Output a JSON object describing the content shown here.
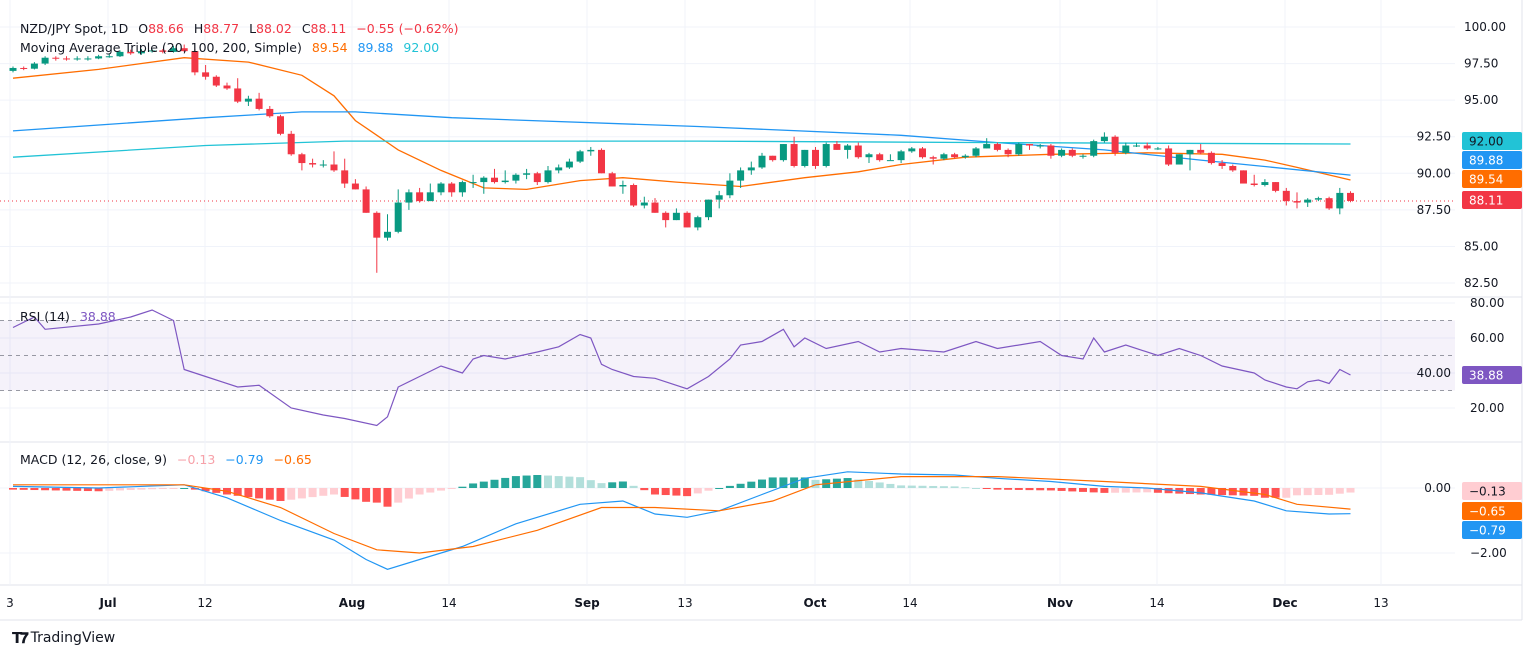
{
  "header": {
    "symbol": "NZD/JPY Spot, 1D",
    "open_label": "O",
    "open": "88.66",
    "high_label": "H",
    "high": "88.77",
    "low_label": "L",
    "low": "88.02",
    "close_label": "C",
    "close": "88.11",
    "change": "−0.55 (−0.62%)"
  },
  "ma_legend": {
    "title": "Moving Average Triple (20, 100, 200, Simple)",
    "ma20": "89.54",
    "ma100": "89.88",
    "ma200": "92.00"
  },
  "rsi_legend": {
    "title": "RSI (14)",
    "value": "38.88"
  },
  "macd_legend": {
    "title": "MACD (12, 26, close, 9)",
    "hist": "−0.13",
    "macd": "−0.79",
    "signal": "−0.65"
  },
  "colors": {
    "up": "#089981",
    "down": "#F23645",
    "ma20": "#FF6D00",
    "ma100": "#2196F3",
    "ma200": "#22C3D6",
    "rsi": "#7E57C2",
    "hist_up_strong": "#26A69A",
    "hist_up_weak": "#B2DFDB",
    "hist_dn_strong": "#FF5252",
    "hist_dn_weak": "#FFCDD2"
  },
  "price_axis": {
    "ticks": [
      "100.00",
      "97.50",
      "95.00",
      "92.50",
      "90.00",
      "87.50",
      "85.00",
      "82.50"
    ]
  },
  "rsi_axis": {
    "ticks": [
      "80.00",
      "60.00",
      "40.00",
      "20.00"
    ]
  },
  "macd_axis": {
    "ticks": [
      "0.00",
      "−2.00"
    ]
  },
  "time_axis": {
    "ticks": [
      "3",
      "Jul",
      "12",
      "Aug",
      "14",
      "Sep",
      "13",
      "Oct",
      "14",
      "Nov",
      "14",
      "Dec",
      "13"
    ]
  },
  "badges": {
    "ma200": "92.00",
    "ma100": "89.88",
    "ma20": "89.54",
    "last": "88.11",
    "rsi": "38.88",
    "hist": "−0.13",
    "signal": "−0.65",
    "macd": "−0.79"
  },
  "branding": {
    "logo_text": "TradingView"
  },
  "chart_data": {
    "type": "candlestick",
    "title": "NZD/JPY Spot, 1D",
    "ylim": [
      82.0,
      100.5
    ],
    "last_price": 88.11,
    "ohlc": [
      [
        97.0,
        97.3,
        96.9,
        97.2
      ],
      [
        97.2,
        97.3,
        97.05,
        97.15
      ],
      [
        97.15,
        97.6,
        97.1,
        97.5
      ],
      [
        97.5,
        98.0,
        97.4,
        97.9
      ],
      [
        97.9,
        98.0,
        97.7,
        97.85
      ],
      [
        97.85,
        98.0,
        97.7,
        97.8
      ],
      [
        97.8,
        98.0,
        97.7,
        97.85
      ],
      [
        97.85,
        98.0,
        97.7,
        97.85
      ],
      [
        97.85,
        98.1,
        97.8,
        98.0
      ],
      [
        98.0,
        98.15,
        97.9,
        98.0
      ],
      [
        98.0,
        98.4,
        97.95,
        98.3
      ],
      [
        98.3,
        98.45,
        98.1,
        98.2
      ],
      [
        98.2,
        98.5,
        98.1,
        98.35
      ],
      [
        98.35,
        98.5,
        98.25,
        98.4
      ],
      [
        98.4,
        98.5,
        98.2,
        98.3
      ],
      [
        98.3,
        98.7,
        98.25,
        98.55
      ],
      [
        98.55,
        98.8,
        98.3,
        98.35
      ],
      [
        98.35,
        98.5,
        96.7,
        96.9
      ],
      [
        96.9,
        97.4,
        96.4,
        96.6
      ],
      [
        96.6,
        96.7,
        95.9,
        96.0
      ],
      [
        96.0,
        96.2,
        95.7,
        95.8
      ],
      [
        95.8,
        96.5,
        94.8,
        94.9
      ],
      [
        94.9,
        95.3,
        94.6,
        95.1
      ],
      [
        95.1,
        95.5,
        94.3,
        94.4
      ],
      [
        94.4,
        94.6,
        93.8,
        93.9
      ],
      [
        93.9,
        94.0,
        92.6,
        92.7
      ],
      [
        92.7,
        92.9,
        91.2,
        91.3
      ],
      [
        91.3,
        91.4,
        90.2,
        90.7
      ],
      [
        90.7,
        91.0,
        90.4,
        90.6
      ],
      [
        90.6,
        90.9,
        90.4,
        90.6
      ],
      [
        90.6,
        91.5,
        90.1,
        90.2
      ],
      [
        90.2,
        91.0,
        89.0,
        89.3
      ],
      [
        89.3,
        89.6,
        88.9,
        88.9
      ],
      [
        88.9,
        89.1,
        87.3,
        87.3
      ],
      [
        87.3,
        87.4,
        83.2,
        85.6
      ],
      [
        85.6,
        87.2,
        85.4,
        86.0
      ],
      [
        86.0,
        88.9,
        85.9,
        88.0
      ],
      [
        88.0,
        88.9,
        87.5,
        88.7
      ],
      [
        88.7,
        89.0,
        88.0,
        88.1
      ],
      [
        88.1,
        89.3,
        88.1,
        88.7
      ],
      [
        88.7,
        89.4,
        88.5,
        89.3
      ],
      [
        89.3,
        89.4,
        88.4,
        88.7
      ],
      [
        88.7,
        89.5,
        88.4,
        89.4
      ],
      [
        89.4,
        89.9,
        89.0,
        89.4
      ],
      [
        89.4,
        89.8,
        88.6,
        89.7
      ],
      [
        89.7,
        90.3,
        89.3,
        89.4
      ],
      [
        89.4,
        90.2,
        89.3,
        89.5
      ],
      [
        89.5,
        90.0,
        89.3,
        89.9
      ],
      [
        89.9,
        90.3,
        89.6,
        90.0
      ],
      [
        90.0,
        90.1,
        89.2,
        89.4
      ],
      [
        89.4,
        90.5,
        89.3,
        90.2
      ],
      [
        90.2,
        90.6,
        90.0,
        90.4
      ],
      [
        90.4,
        91.0,
        90.3,
        90.8
      ],
      [
        90.8,
        91.6,
        90.7,
        91.5
      ],
      [
        91.5,
        91.8,
        91.2,
        91.6
      ],
      [
        91.6,
        91.7,
        90.0,
        90.0
      ],
      [
        90.0,
        90.1,
        89.1,
        89.1
      ],
      [
        89.1,
        89.5,
        88.6,
        89.2
      ],
      [
        89.2,
        89.3,
        87.7,
        87.8
      ],
      [
        87.8,
        88.4,
        87.6,
        88.0
      ],
      [
        88.0,
        88.3,
        87.3,
        87.3
      ],
      [
        87.3,
        87.4,
        86.3,
        86.8
      ],
      [
        86.8,
        87.6,
        86.8,
        87.3
      ],
      [
        87.3,
        87.4,
        86.3,
        86.3
      ],
      [
        86.3,
        87.1,
        86.1,
        87.0
      ],
      [
        87.0,
        88.2,
        86.8,
        88.2
      ],
      [
        88.2,
        88.8,
        87.6,
        88.5
      ],
      [
        88.5,
        90.0,
        88.3,
        89.5
      ],
      [
        89.5,
        90.4,
        89.0,
        90.2
      ],
      [
        90.2,
        90.8,
        89.9,
        90.4
      ],
      [
        90.4,
        91.4,
        90.3,
        91.2
      ],
      [
        91.2,
        91.2,
        90.8,
        90.9
      ],
      [
        90.9,
        92.0,
        90.8,
        92.0
      ],
      [
        92.0,
        92.5,
        90.4,
        90.5
      ],
      [
        90.5,
        91.6,
        90.4,
        91.6
      ],
      [
        91.6,
        91.8,
        90.3,
        90.5
      ],
      [
        90.5,
        92.1,
        90.4,
        92.0
      ],
      [
        92.0,
        92.2,
        91.6,
        91.6
      ],
      [
        91.6,
        92.0,
        91.0,
        91.9
      ],
      [
        91.9,
        92.1,
        91.0,
        91.1
      ],
      [
        91.1,
        91.4,
        90.7,
        91.3
      ],
      [
        91.3,
        91.4,
        90.8,
        90.9
      ],
      [
        90.9,
        91.3,
        90.9,
        90.9
      ],
      [
        90.9,
        91.6,
        90.7,
        91.5
      ],
      [
        91.5,
        91.8,
        91.4,
        91.7
      ],
      [
        91.7,
        91.8,
        91.0,
        91.1
      ],
      [
        91.1,
        91.2,
        90.6,
        91.0
      ],
      [
        91.0,
        91.4,
        90.9,
        91.3
      ],
      [
        91.3,
        91.4,
        91.0,
        91.1
      ],
      [
        91.1,
        91.3,
        91.0,
        91.2
      ],
      [
        91.2,
        91.8,
        91.1,
        91.7
      ],
      [
        91.7,
        92.4,
        91.7,
        92.0
      ],
      [
        92.0,
        92.1,
        91.5,
        91.6
      ],
      [
        91.6,
        91.7,
        91.1,
        91.3
      ],
      [
        91.3,
        92.1,
        91.2,
        92.0
      ],
      [
        92.0,
        92.0,
        91.6,
        91.9
      ],
      [
        91.9,
        92.0,
        91.7,
        91.9
      ],
      [
        91.9,
        92.0,
        91.0,
        91.2
      ],
      [
        91.2,
        91.7,
        91.1,
        91.6
      ],
      [
        91.6,
        91.7,
        91.1,
        91.2
      ],
      [
        91.2,
        91.3,
        91.0,
        91.2
      ],
      [
        91.2,
        92.3,
        91.1,
        92.2
      ],
      [
        92.2,
        92.8,
        92.1,
        92.5
      ],
      [
        92.5,
        92.6,
        91.2,
        91.4
      ],
      [
        91.4,
        92.1,
        91.3,
        91.9
      ],
      [
        91.9,
        92.1,
        91.8,
        91.9
      ],
      [
        91.9,
        92.1,
        91.6,
        91.7
      ],
      [
        91.7,
        91.8,
        91.6,
        91.7
      ],
      [
        91.7,
        91.9,
        90.5,
        90.6
      ],
      [
        90.6,
        91.3,
        90.6,
        91.3
      ],
      [
        91.3,
        91.6,
        90.2,
        91.6
      ],
      [
        91.6,
        92.0,
        91.3,
        91.4
      ],
      [
        91.4,
        91.5,
        90.6,
        90.7
      ],
      [
        90.7,
        90.9,
        90.3,
        90.5
      ],
      [
        90.5,
        90.6,
        90.1,
        90.2
      ],
      [
        90.2,
        90.2,
        89.3,
        89.3
      ],
      [
        89.3,
        89.9,
        89.1,
        89.2
      ],
      [
        89.2,
        89.6,
        89.1,
        89.4
      ],
      [
        89.4,
        89.4,
        88.7,
        88.8
      ],
      [
        88.8,
        89.0,
        87.8,
        88.1
      ],
      [
        88.1,
        88.7,
        87.6,
        88.0
      ],
      [
        88.0,
        88.3,
        87.7,
        88.2
      ],
      [
        88.2,
        88.4,
        88.1,
        88.3
      ],
      [
        88.3,
        88.4,
        87.5,
        87.6
      ],
      [
        87.6,
        89.0,
        87.2,
        88.66
      ],
      [
        88.66,
        88.77,
        88.02,
        88.11
      ]
    ],
    "moving_averages": [
      {
        "name": "20",
        "points": [
          [
            0,
            96.5
          ],
          [
            8,
            97.1
          ],
          [
            16,
            97.9
          ],
          [
            22,
            97.6
          ],
          [
            27,
            96.7
          ],
          [
            30,
            95.3
          ],
          [
            32,
            93.6
          ],
          [
            36,
            91.6
          ],
          [
            40,
            90.2
          ],
          [
            44,
            89.0
          ],
          [
            48,
            88.9
          ],
          [
            53,
            89.5
          ],
          [
            57,
            89.7
          ],
          [
            62,
            89.4
          ],
          [
            68,
            89.1
          ],
          [
            74,
            89.7
          ],
          [
            79,
            90.1
          ],
          [
            83,
            90.6
          ],
          [
            89,
            91.1
          ],
          [
            97,
            91.3
          ],
          [
            106,
            91.4
          ],
          [
            113,
            91.3
          ],
          [
            117,
            90.9
          ],
          [
            120,
            90.4
          ],
          [
            125,
            89.54
          ]
        ]
      },
      {
        "name": "100",
        "points": [
          [
            0,
            92.9
          ],
          [
            18,
            93.8
          ],
          [
            27,
            94.2
          ],
          [
            32,
            94.2
          ],
          [
            41,
            93.8
          ],
          [
            64,
            93.2
          ],
          [
            83,
            92.6
          ],
          [
            92,
            92.1
          ],
          [
            102,
            91.6
          ],
          [
            111,
            90.9
          ],
          [
            125,
            89.88
          ]
        ]
      },
      {
        "name": "200",
        "points": [
          [
            0,
            91.1
          ],
          [
            18,
            91.9
          ],
          [
            31,
            92.2
          ],
          [
            64,
            92.2
          ],
          [
            92,
            92.1
          ],
          [
            125,
            92.0
          ]
        ]
      }
    ],
    "rsi": {
      "ylim": [
        0,
        85
      ],
      "levels": [
        70,
        50,
        30
      ],
      "points": [
        [
          0,
          66
        ],
        [
          2,
          72
        ],
        [
          3,
          65
        ],
        [
          8,
          68
        ],
        [
          11,
          72
        ],
        [
          13,
          76
        ],
        [
          15,
          70
        ],
        [
          16,
          42
        ],
        [
          18,
          38
        ],
        [
          21,
          32
        ],
        [
          23,
          33
        ],
        [
          26,
          20
        ],
        [
          29,
          16
        ],
        [
          31,
          14
        ],
        [
          34,
          10
        ],
        [
          35,
          15
        ],
        [
          36,
          32
        ],
        [
          38,
          38
        ],
        [
          40,
          44
        ],
        [
          42,
          40
        ],
        [
          43,
          48
        ],
        [
          44,
          50
        ],
        [
          46,
          48
        ],
        [
          49,
          52
        ],
        [
          51,
          55
        ],
        [
          53,
          62
        ],
        [
          54,
          60
        ],
        [
          55,
          45
        ],
        [
          56,
          42
        ],
        [
          58,
          38
        ],
        [
          60,
          37
        ],
        [
          61,
          35
        ],
        [
          63,
          31
        ],
        [
          65,
          38
        ],
        [
          67,
          48
        ],
        [
          68,
          56
        ],
        [
          70,
          58
        ],
        [
          72,
          65
        ],
        [
          73,
          55
        ],
        [
          74,
          60
        ],
        [
          76,
          54
        ],
        [
          79,
          58
        ],
        [
          81,
          52
        ],
        [
          83,
          54
        ],
        [
          87,
          52
        ],
        [
          90,
          58
        ],
        [
          92,
          54
        ],
        [
          96,
          58
        ],
        [
          98,
          50
        ],
        [
          100,
          48
        ],
        [
          101,
          60
        ],
        [
          102,
          52
        ],
        [
          104,
          56
        ],
        [
          107,
          50
        ],
        [
          109,
          54
        ],
        [
          111,
          50
        ],
        [
          113,
          44
        ],
        [
          116,
          40
        ],
        [
          117,
          36
        ],
        [
          119,
          32
        ],
        [
          120,
          31
        ],
        [
          121,
          35
        ],
        [
          122,
          36
        ],
        [
          123,
          34
        ],
        [
          124,
          42
        ],
        [
          125,
          38.88
        ]
      ]
    },
    "macd": {
      "ylim": [
        -2.7,
        1.0
      ],
      "macd": [
        [
          0,
          0.05
        ],
        [
          8,
          0.0
        ],
        [
          16,
          0.1
        ],
        [
          20,
          -0.3
        ],
        [
          25,
          -1.0
        ],
        [
          30,
          -1.6
        ],
        [
          33,
          -2.2
        ],
        [
          35,
          -2.5
        ],
        [
          38,
          -2.2
        ],
        [
          42,
          -1.8
        ],
        [
          47,
          -1.1
        ],
        [
          53,
          -0.5
        ],
        [
          57,
          -0.4
        ],
        [
          60,
          -0.8
        ],
        [
          63,
          -0.9
        ],
        [
          66,
          -0.7
        ],
        [
          70,
          -0.2
        ],
        [
          74,
          0.3
        ],
        [
          78,
          0.5
        ],
        [
          83,
          0.43
        ],
        [
          88,
          0.4
        ],
        [
          92,
          0.3
        ],
        [
          97,
          0.2
        ],
        [
          102,
          0.05
        ],
        [
          106,
          0.0
        ],
        [
          111,
          -0.15
        ],
        [
          116,
          -0.4
        ],
        [
          119,
          -0.7
        ],
        [
          123,
          -0.8
        ],
        [
          125,
          -0.79
        ]
      ],
      "signal": [
        [
          0,
          0.1
        ],
        [
          16,
          0.1
        ],
        [
          20,
          -0.1
        ],
        [
          25,
          -0.6
        ],
        [
          30,
          -1.4
        ],
        [
          34,
          -1.9
        ],
        [
          38,
          -2.0
        ],
        [
          43,
          -1.8
        ],
        [
          49,
          -1.3
        ],
        [
          55,
          -0.6
        ],
        [
          60,
          -0.6
        ],
        [
          66,
          -0.7
        ],
        [
          71,
          -0.4
        ],
        [
          75,
          0.1
        ],
        [
          83,
          0.35
        ],
        [
          92,
          0.35
        ],
        [
          102,
          0.2
        ],
        [
          111,
          0.05
        ],
        [
          117,
          -0.2
        ],
        [
          120,
          -0.5
        ],
        [
          125,
          -0.65
        ]
      ]
    }
  }
}
